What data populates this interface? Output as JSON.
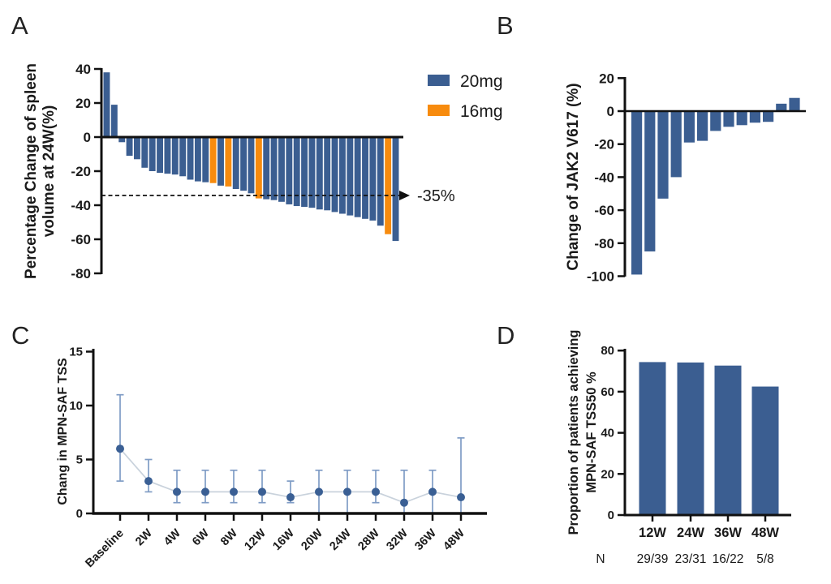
{
  "figure": {
    "background": "#ffffff",
    "colors": {
      "blue": "#3b5e91",
      "orange": "#f78b0e",
      "axis": "#111111",
      "errorbar": "#7f9cc5",
      "connect_line": "#c9d2dc",
      "point": "#3a5f94",
      "n_row": "#333333"
    }
  },
  "panels": {
    "a": {
      "letter": "A"
    },
    "b": {
      "letter": "B"
    },
    "c": {
      "letter": "C"
    },
    "d": {
      "letter": "D"
    }
  },
  "chart_data": [
    {
      "id": "A",
      "type": "bar",
      "subtype": "waterfall",
      "ylabel_lines": [
        "Percentage Change of spleen",
        "volume at 24W(%)"
      ],
      "ylim": [
        -80,
        40
      ],
      "yticks": [
        40,
        20,
        0,
        -20,
        -40,
        -60,
        -80
      ],
      "grid": false,
      "legend_position": "top-right",
      "series_legend": [
        {
          "name": "20mg",
          "color": "#3b5e91"
        },
        {
          "name": "16mg",
          "color": "#f78b0e"
        }
      ],
      "reference_line": {
        "value": -35,
        "label": "-35%",
        "style": "dashed-arrow"
      },
      "values": [
        38,
        19,
        -3,
        -11,
        -13,
        -18,
        -20,
        -21,
        -21.5,
        -22,
        -23,
        -25,
        -26,
        -26.5,
        -27,
        -28.5,
        -29,
        -30.5,
        -31.5,
        -33,
        -36,
        -36.5,
        -37,
        -38,
        -39.5,
        -40.5,
        -41,
        -41.5,
        -42.5,
        -43,
        -44,
        -45,
        -46,
        -47,
        -48,
        -49,
        -52,
        -57,
        -61
      ],
      "dose_16mg_indices": [
        14,
        16,
        20,
        37
      ]
    },
    {
      "id": "B",
      "type": "bar",
      "subtype": "waterfall",
      "ylabel": "Change of JAK2 V617 (%)",
      "ylim": [
        -100,
        20
      ],
      "yticks": [
        20,
        0,
        -20,
        -40,
        -60,
        -80,
        -100
      ],
      "grid": false,
      "values": [
        -99,
        -85,
        -53,
        -40,
        -19,
        -18,
        -12,
        -9.5,
        -8.5,
        -7,
        -6.5,
        4.5,
        8
      ]
    },
    {
      "id": "C",
      "type": "line",
      "ylabel": "Chang in MPN-SAF TSS",
      "ylim": [
        0,
        15
      ],
      "yticks": [
        0,
        5,
        10,
        15
      ],
      "grid": false,
      "error_bars": true,
      "categories": [
        "Baseline",
        "2W",
        "4W",
        "6W",
        "8W",
        "12W",
        "16W",
        "20W",
        "24W",
        "28W",
        "32W",
        "36W",
        "48W"
      ],
      "mean": [
        6,
        3,
        2,
        2,
        2,
        2,
        1.5,
        2,
        2,
        2,
        1,
        2,
        1.5
      ],
      "upper": [
        11,
        5,
        4,
        4,
        4,
        4,
        3,
        4,
        4,
        4,
        4,
        4,
        7
      ],
      "lower": [
        3,
        2,
        1,
        1,
        1,
        1,
        1,
        0,
        0,
        1,
        0,
        0,
        0
      ]
    },
    {
      "id": "D",
      "type": "bar",
      "ylabel_lines": [
        "Proportion of patients achieving",
        "MPN-SAF TSS50 %"
      ],
      "ylim": [
        0,
        80
      ],
      "yticks": [
        0,
        20,
        40,
        60,
        80
      ],
      "grid": false,
      "categories": [
        "12W",
        "24W",
        "36W",
        "48W"
      ],
      "values": [
        74.4,
        74.2,
        72.7,
        62.5
      ],
      "n_label": "N",
      "n_values": [
        "29/39",
        "23/31",
        "16/22",
        "5/8"
      ]
    }
  ]
}
